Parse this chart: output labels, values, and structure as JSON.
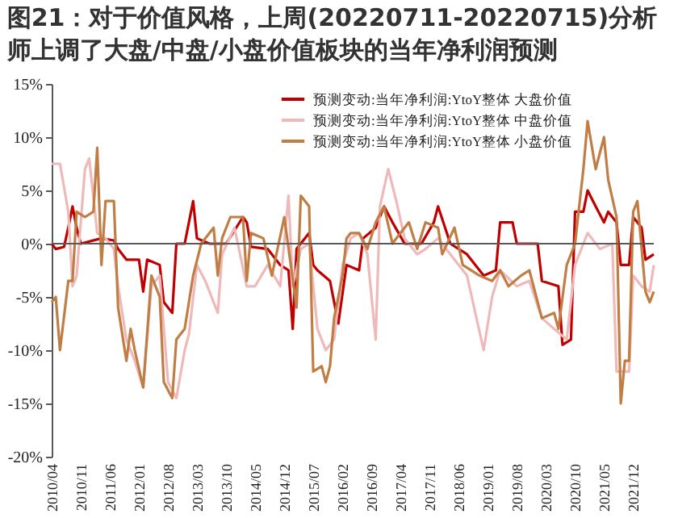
{
  "chart_data": {
    "type": "line",
    "title": "图21：对于价值风格，上周(20220711-20220715)分析师上调了大盘/中盘/小盘价值板块的当年净利润预测",
    "xlim": [
      "2010-04",
      "2022-05"
    ],
    "xticks": [
      {
        "value": "2010-04",
        "label": "2010/04"
      },
      {
        "value": "2010-11",
        "label": "2010/11"
      },
      {
        "value": "2011-06",
        "label": "2011/06"
      },
      {
        "value": "2012-01",
        "label": "2012/01"
      },
      {
        "value": "2012-08",
        "label": "2012/08"
      },
      {
        "value": "2013-03",
        "label": "2013/03"
      },
      {
        "value": "2013-10",
        "label": "2013/10"
      },
      {
        "value": "2014-05",
        "label": "2014/05"
      },
      {
        "value": "2014-12",
        "label": "2014/12"
      },
      {
        "value": "2015-07",
        "label": "2015/07"
      },
      {
        "value": "2016-02",
        "label": "2016/02"
      },
      {
        "value": "2016-09",
        "label": "2016/09"
      },
      {
        "value": "2017-04",
        "label": "2017/04"
      },
      {
        "value": "2017-11",
        "label": "2017/11"
      },
      {
        "value": "2018-06",
        "label": "2018/06"
      },
      {
        "value": "2019-01",
        "label": "2019/01"
      },
      {
        "value": "2019-08",
        "label": "2019/08"
      },
      {
        "value": "2020-03",
        "label": "2020/03"
      },
      {
        "value": "2020-10",
        "label": "2020/10"
      },
      {
        "value": "2021-05",
        "label": "2021/05"
      },
      {
        "value": "2021-12",
        "label": "2021/12"
      }
    ],
    "ylim": [
      -20,
      15
    ],
    "yticks": [
      {
        "value": -20,
        "label": "-20%"
      },
      {
        "value": -15,
        "label": "-15%"
      },
      {
        "value": -10,
        "label": "-10%"
      },
      {
        "value": -5,
        "label": "-5%"
      },
      {
        "value": 0,
        "label": "0%"
      },
      {
        "value": 5,
        "label": "5%"
      },
      {
        "value": 10,
        "label": "10%"
      },
      {
        "value": 15,
        "label": "15%"
      }
    ],
    "grid": false,
    "legend": "top right",
    "line_style": "solid",
    "marker": "none",
    "ref_lines": [
      {
        "axis": "y",
        "value": 0,
        "color": "#595959"
      }
    ],
    "series": [
      {
        "name": "预测变动:当年净利润:YtoY整体 大盘价值",
        "color": "#c00000",
        "x": [
          "2010-04",
          "2010-05",
          "2010-07",
          "2010-08",
          "2010-09",
          "2010-10",
          "2010-11",
          "2011-04",
          "2011-07",
          "2011-08",
          "2011-10",
          "2012-01",
          "2012-02",
          "2012-03",
          "2012-06",
          "2012-07",
          "2012-09",
          "2012-10",
          "2012-12",
          "2013-02",
          "2013-03",
          "2013-06",
          "2013-10",
          "2014-02",
          "2014-03",
          "2014-04",
          "2014-08",
          "2014-11",
          "2015-01",
          "2015-02",
          "2015-03",
          "2015-06",
          "2015-07",
          "2015-08",
          "2015-11",
          "2016-01",
          "2016-03",
          "2016-06",
          "2016-07",
          "2016-10",
          "2016-12",
          "2017-02",
          "2017-05",
          "2017-09",
          "2017-12",
          "2018-01",
          "2018-04",
          "2018-08",
          "2018-12",
          "2019-03",
          "2019-04",
          "2019-07",
          "2019-08",
          "2020-01",
          "2020-02",
          "2020-06",
          "2020-07",
          "2020-09",
          "2020-10",
          "2020-12",
          "2021-01",
          "2021-03",
          "2021-05",
          "2021-06",
          "2021-08",
          "2021-09",
          "2021-11",
          "2021-12",
          "2022-02",
          "2022-03",
          "2022-05"
        ],
        "values": [
          0,
          -0.5,
          -0.3,
          1.5,
          3.5,
          1.5,
          0,
          0.5,
          0.3,
          -0.5,
          -1.5,
          -1.5,
          -4.5,
          -1.5,
          -2,
          -5.5,
          -6.5,
          0,
          0,
          4,
          0.5,
          0,
          0,
          2.5,
          2,
          -0.3,
          -0.5,
          -2,
          -2.5,
          -8,
          -0.5,
          1,
          -2,
          -2.5,
          -3.5,
          -7.5,
          -2,
          -2.5,
          0.5,
          1.5,
          3.5,
          2,
          0,
          0,
          2,
          3.5,
          0,
          -1,
          -3,
          -2.5,
          2,
          2,
          0,
          0,
          -3.5,
          -4,
          -9.5,
          -9,
          3,
          3,
          5,
          3.5,
          2,
          3,
          2,
          -2,
          -2,
          2.5,
          1.5,
          -1.5,
          -1
        ]
      },
      {
        "name": "预测变动:当年净利润:YtoY整体 中盘价值",
        "color": "#f0b9b9",
        "x": [
          "2010-04",
          "2010-06",
          "2010-08",
          "2010-09",
          "2010-10",
          "2010-12",
          "2011-01",
          "2011-03",
          "2011-05",
          "2011-07",
          "2011-08",
          "2011-10",
          "2011-12",
          "2012-02",
          "2012-04",
          "2012-06",
          "2012-08",
          "2012-10",
          "2012-12",
          "2013-01",
          "2013-03",
          "2013-05",
          "2013-07",
          "2013-08",
          "2013-09",
          "2013-12",
          "2014-03",
          "2014-05",
          "2014-08",
          "2014-11",
          "2015-01",
          "2015-02",
          "2015-04",
          "2015-06",
          "2015-08",
          "2015-10",
          "2015-12",
          "2016-02",
          "2016-04",
          "2016-06",
          "2016-08",
          "2016-10",
          "2016-11",
          "2017-01",
          "2017-03",
          "2017-05",
          "2017-08",
          "2017-10",
          "2018-01",
          "2018-04",
          "2018-08",
          "2018-12",
          "2019-02",
          "2019-04",
          "2019-08",
          "2019-11",
          "2020-02",
          "2020-05",
          "2020-08",
          "2020-10",
          "2020-12",
          "2021-01",
          "2021-04",
          "2021-07",
          "2021-08",
          "2021-10",
          "2021-11",
          "2021-12",
          "2022-02",
          "2022-04",
          "2022-05"
        ],
        "values": [
          7.5,
          7.5,
          3,
          -4,
          -3,
          7,
          8,
          1,
          0.5,
          -0.5,
          -4,
          -9,
          -11,
          -13.5,
          -4,
          -3,
          -13,
          -14.5,
          -10,
          -8.5,
          -2,
          -3.5,
          -5.5,
          -6.5,
          -1,
          1.5,
          -4,
          -4,
          -2,
          -4,
          4.5,
          -4,
          -0.5,
          0,
          -8,
          -10,
          -9,
          -2,
          0.5,
          1,
          -1,
          -9,
          3.5,
          7,
          4,
          0.5,
          -1,
          -0.5,
          0.5,
          -1,
          -3,
          -10,
          -5,
          -2.5,
          -4,
          -3.5,
          -7,
          -8,
          -9,
          -2,
          0,
          1,
          -0.5,
          0,
          -12,
          -12,
          -12,
          -3,
          -4,
          -4.5,
          -2
        ]
      },
      {
        "name": "预测变动:当年净利润:YtoY整体 小盘价值",
        "color": "#c07d44",
        "x": [
          "2010-04",
          "2010-05",
          "2010-06",
          "2010-08",
          "2010-09",
          "2010-10",
          "2010-12",
          "2011-02",
          "2011-03",
          "2011-04",
          "2011-05",
          "2011-07",
          "2011-08",
          "2011-10",
          "2011-11",
          "2011-12",
          "2012-02",
          "2012-04",
          "2012-06",
          "2012-07",
          "2012-09",
          "2012-10",
          "2012-12",
          "2013-02",
          "2013-04",
          "2013-07",
          "2013-08",
          "2013-09",
          "2013-11",
          "2014-02",
          "2014-03",
          "2014-04",
          "2014-07",
          "2014-09",
          "2014-12",
          "2015-03",
          "2015-04",
          "2015-06",
          "2015-07",
          "2015-09",
          "2015-10",
          "2015-11",
          "2015-12",
          "2016-02",
          "2016-03",
          "2016-04",
          "2016-06",
          "2016-08",
          "2016-10",
          "2016-12",
          "2017-02",
          "2017-03",
          "2017-06",
          "2017-08",
          "2017-10",
          "2018-01",
          "2018-02",
          "2018-05",
          "2018-07",
          "2018-11",
          "2019-02",
          "2019-04",
          "2019-06",
          "2019-09",
          "2019-11",
          "2020-02",
          "2020-05",
          "2020-06",
          "2020-08",
          "2020-10",
          "2020-12",
          "2021-01",
          "2021-03",
          "2021-05",
          "2021-06",
          "2021-08",
          "2021-09",
          "2021-10",
          "2021-11",
          "2021-12",
          "2022-01",
          "2022-03",
          "2022-04",
          "2022-05"
        ],
        "values": [
          -5.5,
          -5,
          -10,
          -3.5,
          -3.5,
          3,
          2.5,
          3,
          9,
          -2,
          4,
          4,
          -6,
          -11,
          -8,
          -10,
          -13.5,
          -3,
          -5,
          -13,
          -14.5,
          -9,
          -8,
          -3,
          0,
          1.5,
          -3,
          0.5,
          2.5,
          2.5,
          -3.5,
          1,
          0.5,
          -3,
          2.5,
          -6,
          4.5,
          3.5,
          -12,
          -11.5,
          -13,
          -11.5,
          -7,
          -3,
          0.5,
          1,
          1,
          -0.5,
          2,
          3.5,
          0,
          0.5,
          2,
          -0.5,
          2,
          1.5,
          -1,
          1.5,
          -2,
          -3,
          -3.5,
          -2.5,
          -4,
          -3,
          -2.5,
          -7,
          -6.5,
          -8,
          -2,
          0,
          7,
          11.5,
          7,
          10,
          6,
          2.5,
          -15,
          -11,
          -11,
          3,
          4,
          -4.5,
          -5.5,
          -4.5
        ]
      }
    ]
  }
}
